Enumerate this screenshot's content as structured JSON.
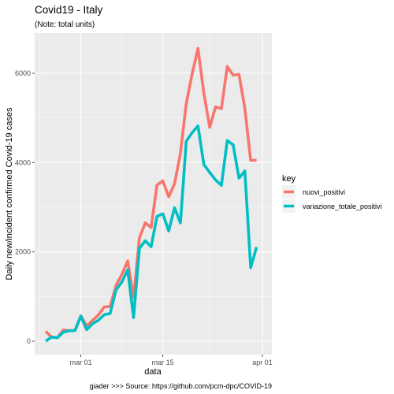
{
  "chart_data": {
    "type": "line",
    "title": "Covid19 - Italy",
    "subtitle": "(Note: total units)",
    "xlabel": "data",
    "ylabel": "Daily new/incident confirmed Covid-19 cases",
    "caption": "giader >>> Source: https://github.com/pcm-dpc/COVID-19",
    "legend_title": "key",
    "legend_position": "right",
    "grid": true,
    "x_ticks": [
      {
        "value": "2020-03-01",
        "label": "mar 01"
      },
      {
        "value": "2020-03-15",
        "label": "mar 15"
      },
      {
        "value": "2020-04-01",
        "label": "apr 01"
      }
    ],
    "y_ticks": [
      0,
      2000,
      4000,
      6000
    ],
    "xlim": [
      "2020-02-24",
      "2020-04-01"
    ],
    "ylim": [
      -300,
      6900
    ],
    "x": [
      "2020-02-24",
      "2020-02-25",
      "2020-02-26",
      "2020-02-27",
      "2020-02-28",
      "2020-02-29",
      "2020-03-01",
      "2020-03-02",
      "2020-03-03",
      "2020-03-04",
      "2020-03-05",
      "2020-03-06",
      "2020-03-07",
      "2020-03-08",
      "2020-03-09",
      "2020-03-10",
      "2020-03-11",
      "2020-03-12",
      "2020-03-13",
      "2020-03-14",
      "2020-03-15",
      "2020-03-16",
      "2020-03-17",
      "2020-03-18",
      "2020-03-19",
      "2020-03-20",
      "2020-03-21",
      "2020-03-22",
      "2020-03-23",
      "2020-03-24",
      "2020-03-25",
      "2020-03-26",
      "2020-03-27",
      "2020-03-28",
      "2020-03-29",
      "2020-03-30",
      "2020-03-31"
    ],
    "series": [
      {
        "name": "nuovi_positivi",
        "color": "#F8766D",
        "values": [
          221,
          93,
          78,
          250,
          238,
          240,
          566,
          342,
          466,
          587,
          769,
          778,
          1247,
          1492,
          1797,
          977,
          2313,
          2651,
          2547,
          3497,
          3590,
          3233,
          3526,
          4207,
          5322,
          5986,
          6557,
          5560,
          4789,
          5249,
          5210,
          6153,
          5959,
          5974,
          5217,
          4050,
          4053
        ]
      },
      {
        "name": "variazione_totale_positivi",
        "color": "#00BFC4",
        "values": [
          0,
          93,
          78,
          200,
          233,
          240,
          561,
          258,
          394,
          469,
          595,
          620,
          1145,
          1326,
          1598,
          529,
          2076,
          2250,
          2116,
          2795,
          2853,
          2470,
          2989,
          2648,
          4480,
          4670,
          4821,
          3957,
          3780,
          3612,
          3491,
          4492,
          4401,
          3651,
          3815,
          1648,
          2107
        ]
      }
    ]
  }
}
